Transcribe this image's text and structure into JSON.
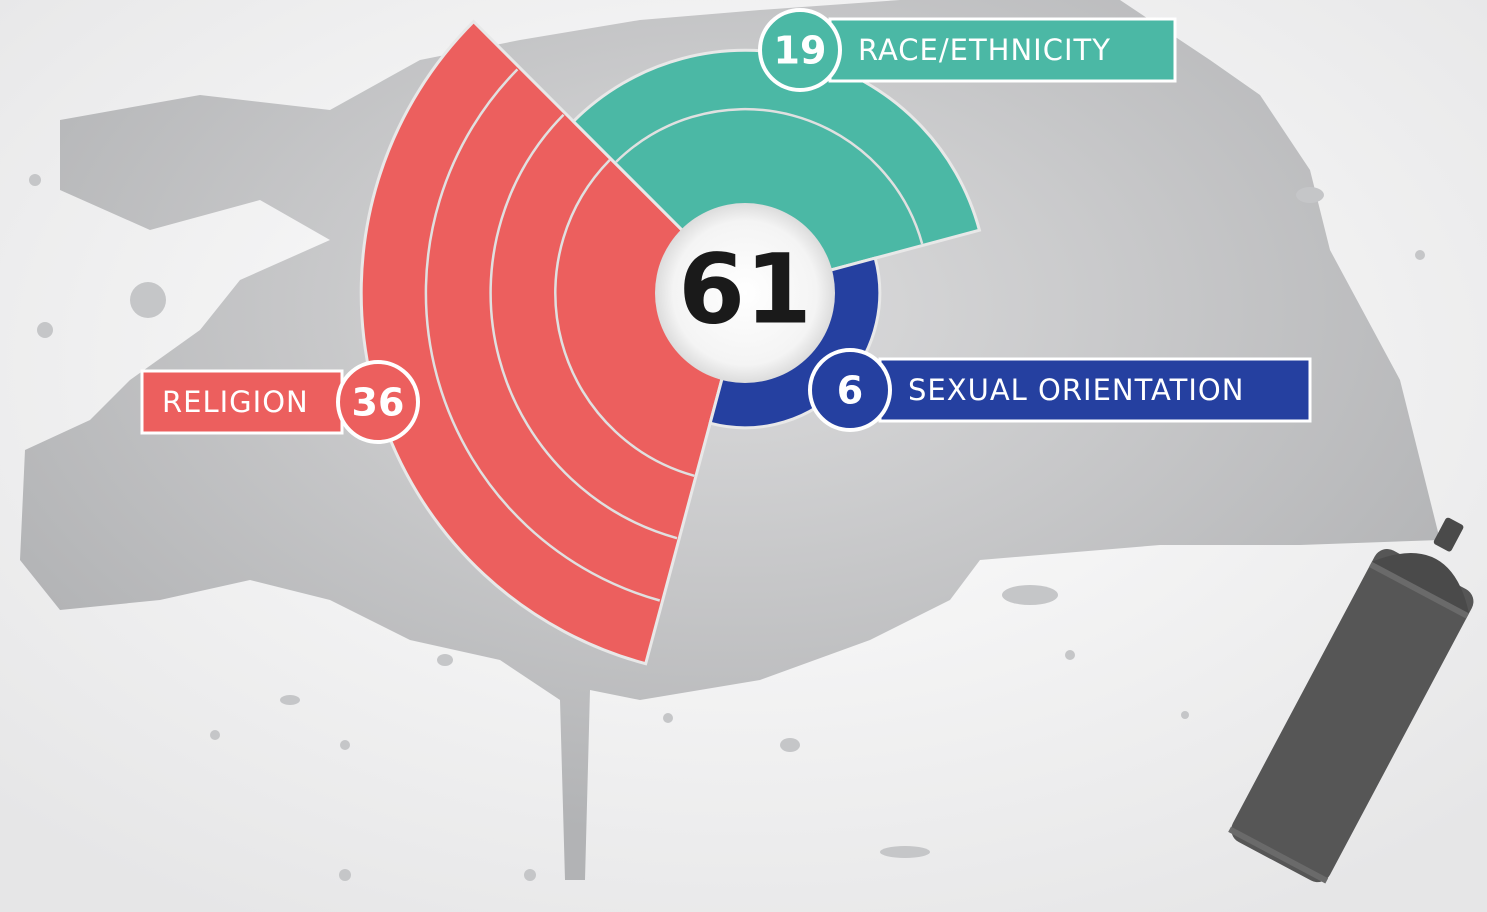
{
  "chart_data": {
    "type": "polar_area",
    "total": 61,
    "categories": [
      "RELIGION",
      "RACE/ETHNICITY",
      "SEXUAL ORIENTATION"
    ],
    "values": [
      36,
      19,
      6
    ],
    "colors": [
      "#ec5f5e",
      "#4bb8a5",
      "#2540a0"
    ]
  }
}
